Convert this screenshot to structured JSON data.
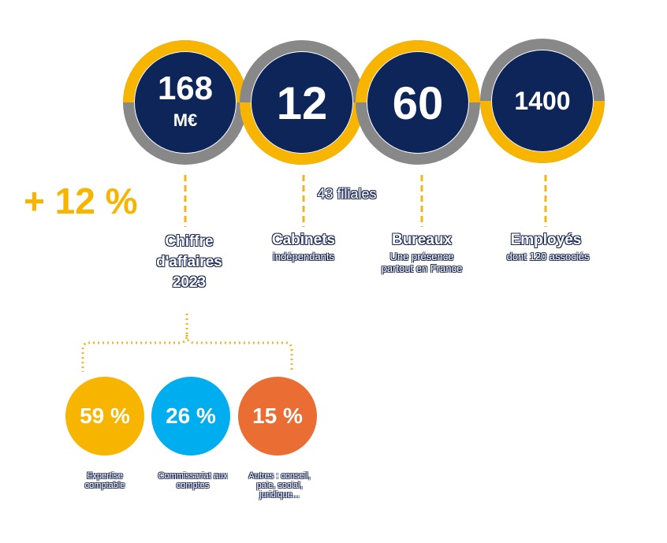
{
  "stats": [
    {
      "value": "168",
      "unit": "M€",
      "label": "Chiffre d'affaires 2023",
      "note": "+ 12 %"
    },
    {
      "value": "12",
      "label": "Cabinets",
      "sub": "indépendants",
      "note": "43 filiales"
    },
    {
      "value": "60",
      "label": "Bureaux",
      "sub": "Une présence partout en France"
    },
    {
      "value": "1400",
      "label": "Employés",
      "sub": "dont 120 associés"
    }
  ],
  "breakdown": [
    {
      "value": "59 %",
      "label": "Expertise comptable"
    },
    {
      "value": "26 %",
      "label": "Commissariat aux comptes"
    },
    {
      "value": "15 %",
      "label": "Autres : conseil, paie, social, juridique..."
    }
  ]
}
